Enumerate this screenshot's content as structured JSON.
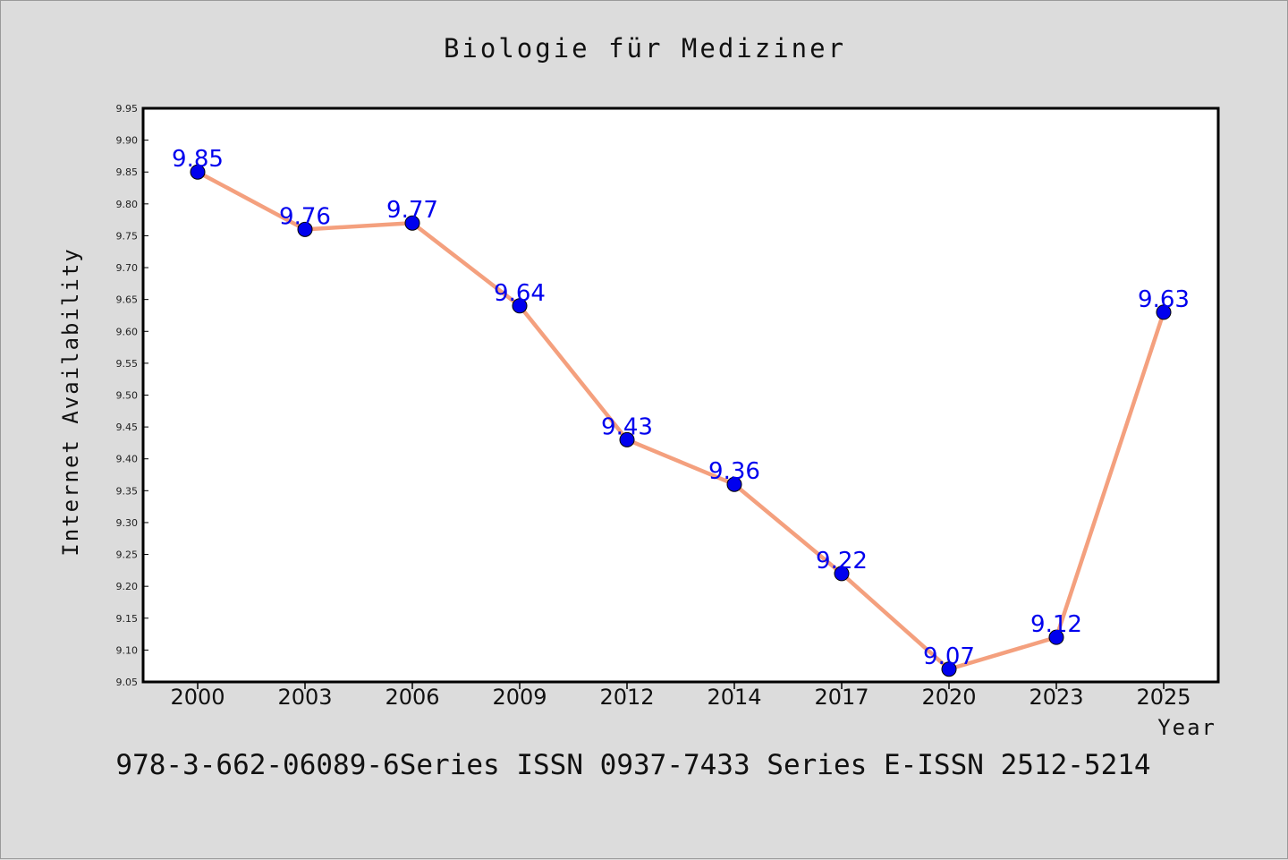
{
  "chart_data": {
    "type": "line",
    "title": "Biologie für Mediziner",
    "xlabel": "Year",
    "ylabel": "Internet Availability",
    "categories": [
      "2000",
      "2003",
      "2006",
      "2009",
      "2012",
      "2014",
      "2017",
      "2020",
      "2023",
      "2025"
    ],
    "series": [
      {
        "values": [
          9.85,
          9.76,
          9.77,
          9.64,
          9.43,
          9.36,
          9.22,
          9.07,
          9.12,
          9.63
        ]
      }
    ],
    "data_labels": [
      "9.85",
      "9.76",
      "9.77",
      "9.64",
      "9.43",
      "9.36",
      "9.22",
      "9.07",
      "9.12",
      "9.63"
    ],
    "ylim": [
      9.05,
      9.95
    ],
    "yticks": [
      "9.05",
      "9.10",
      "9.15",
      "9.20",
      "9.25",
      "9.30",
      "9.35",
      "9.40",
      "9.45",
      "9.50",
      "9.55",
      "9.60",
      "9.65",
      "9.70",
      "9.75",
      "9.80",
      "9.85",
      "9.90",
      "9.95"
    ],
    "grid": false,
    "legend": "none",
    "line_color": "#f4a07e",
    "marker_color": "#0000ee",
    "label_color": "#0000ee"
  },
  "footer": {
    "text": "978-3-662-06089-6Series ISSN 0937-7433 Series E-ISSN 2512-5214"
  }
}
